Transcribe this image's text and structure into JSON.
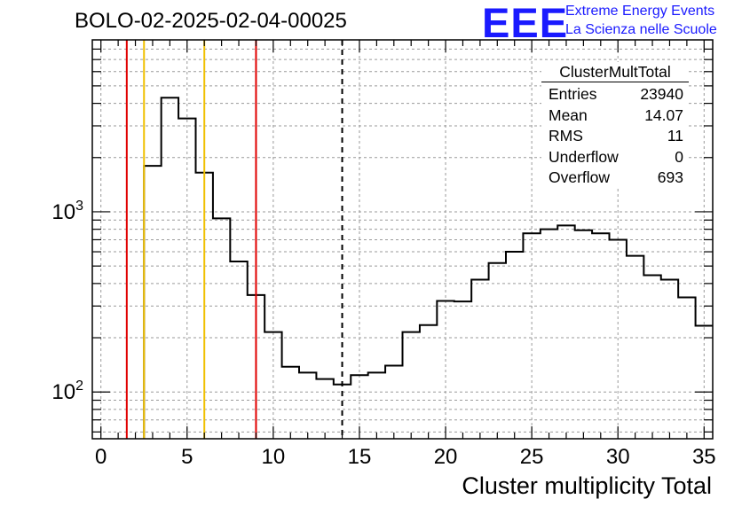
{
  "title": "BOLO-02-2025-02-04-00025",
  "logo": {
    "text": "EEE",
    "line1": "Extreme Energy Events",
    "line2": "La Scienza nelle Scuole",
    "color": "#1a1aff"
  },
  "stats": {
    "title": "ClusterMultTotal",
    "rows": [
      {
        "label": "Entries",
        "value": "23940"
      },
      {
        "label": "Mean",
        "value": "14.07"
      },
      {
        "label": "RMS",
        "value": "11"
      },
      {
        "label": "Underflow",
        "value": "0"
      },
      {
        "label": "Overflow",
        "value": "693"
      }
    ]
  },
  "chart_data": {
    "type": "histogram",
    "xlabel": "Cluster multiplicity Total",
    "ylabel": "",
    "xlim": [
      -0.5,
      35.5
    ],
    "ylim": [
      55,
      9000
    ],
    "yscale": "log",
    "grid": true,
    "x_ticks": [
      0,
      5,
      10,
      15,
      20,
      25,
      30,
      35
    ],
    "y_ticks": [
      {
        "value": 100,
        "base": "10",
        "exp": "2"
      },
      {
        "value": 1000,
        "base": "10",
        "exp": "3"
      }
    ],
    "bin_edges": [
      2.5,
      3.5,
      4.5,
      5.5,
      6.5,
      7.5,
      8.5,
      9.5,
      10.5,
      11.5,
      12.5,
      13.5,
      14.5,
      15.5,
      16.5,
      17.5,
      18.5,
      19.5,
      20.5,
      21.5,
      22.5,
      23.5,
      24.5,
      25.5,
      26.5,
      27.5,
      28.5,
      29.5,
      30.5,
      31.5,
      32.5,
      33.5,
      34.5,
      35.5
    ],
    "counts": [
      1800,
      4300,
      3300,
      1650,
      920,
      530,
      345,
      215,
      138,
      128,
      118,
      110,
      124,
      128,
      140,
      215,
      235,
      320,
      318,
      420,
      520,
      600,
      760,
      800,
      840,
      790,
      760,
      700,
      570,
      445,
      420,
      335,
      233
    ],
    "markers": [
      {
        "x": 1.5,
        "color": "#e00000",
        "style": "solid"
      },
      {
        "x": 2.5,
        "color": "#f0c000",
        "style": "solid"
      },
      {
        "x": 6.0,
        "color": "#f0c000",
        "style": "solid"
      },
      {
        "x": 9.0,
        "color": "#e00000",
        "style": "solid"
      },
      {
        "x": 14.0,
        "color": "#000000",
        "style": "dashed"
      }
    ]
  }
}
